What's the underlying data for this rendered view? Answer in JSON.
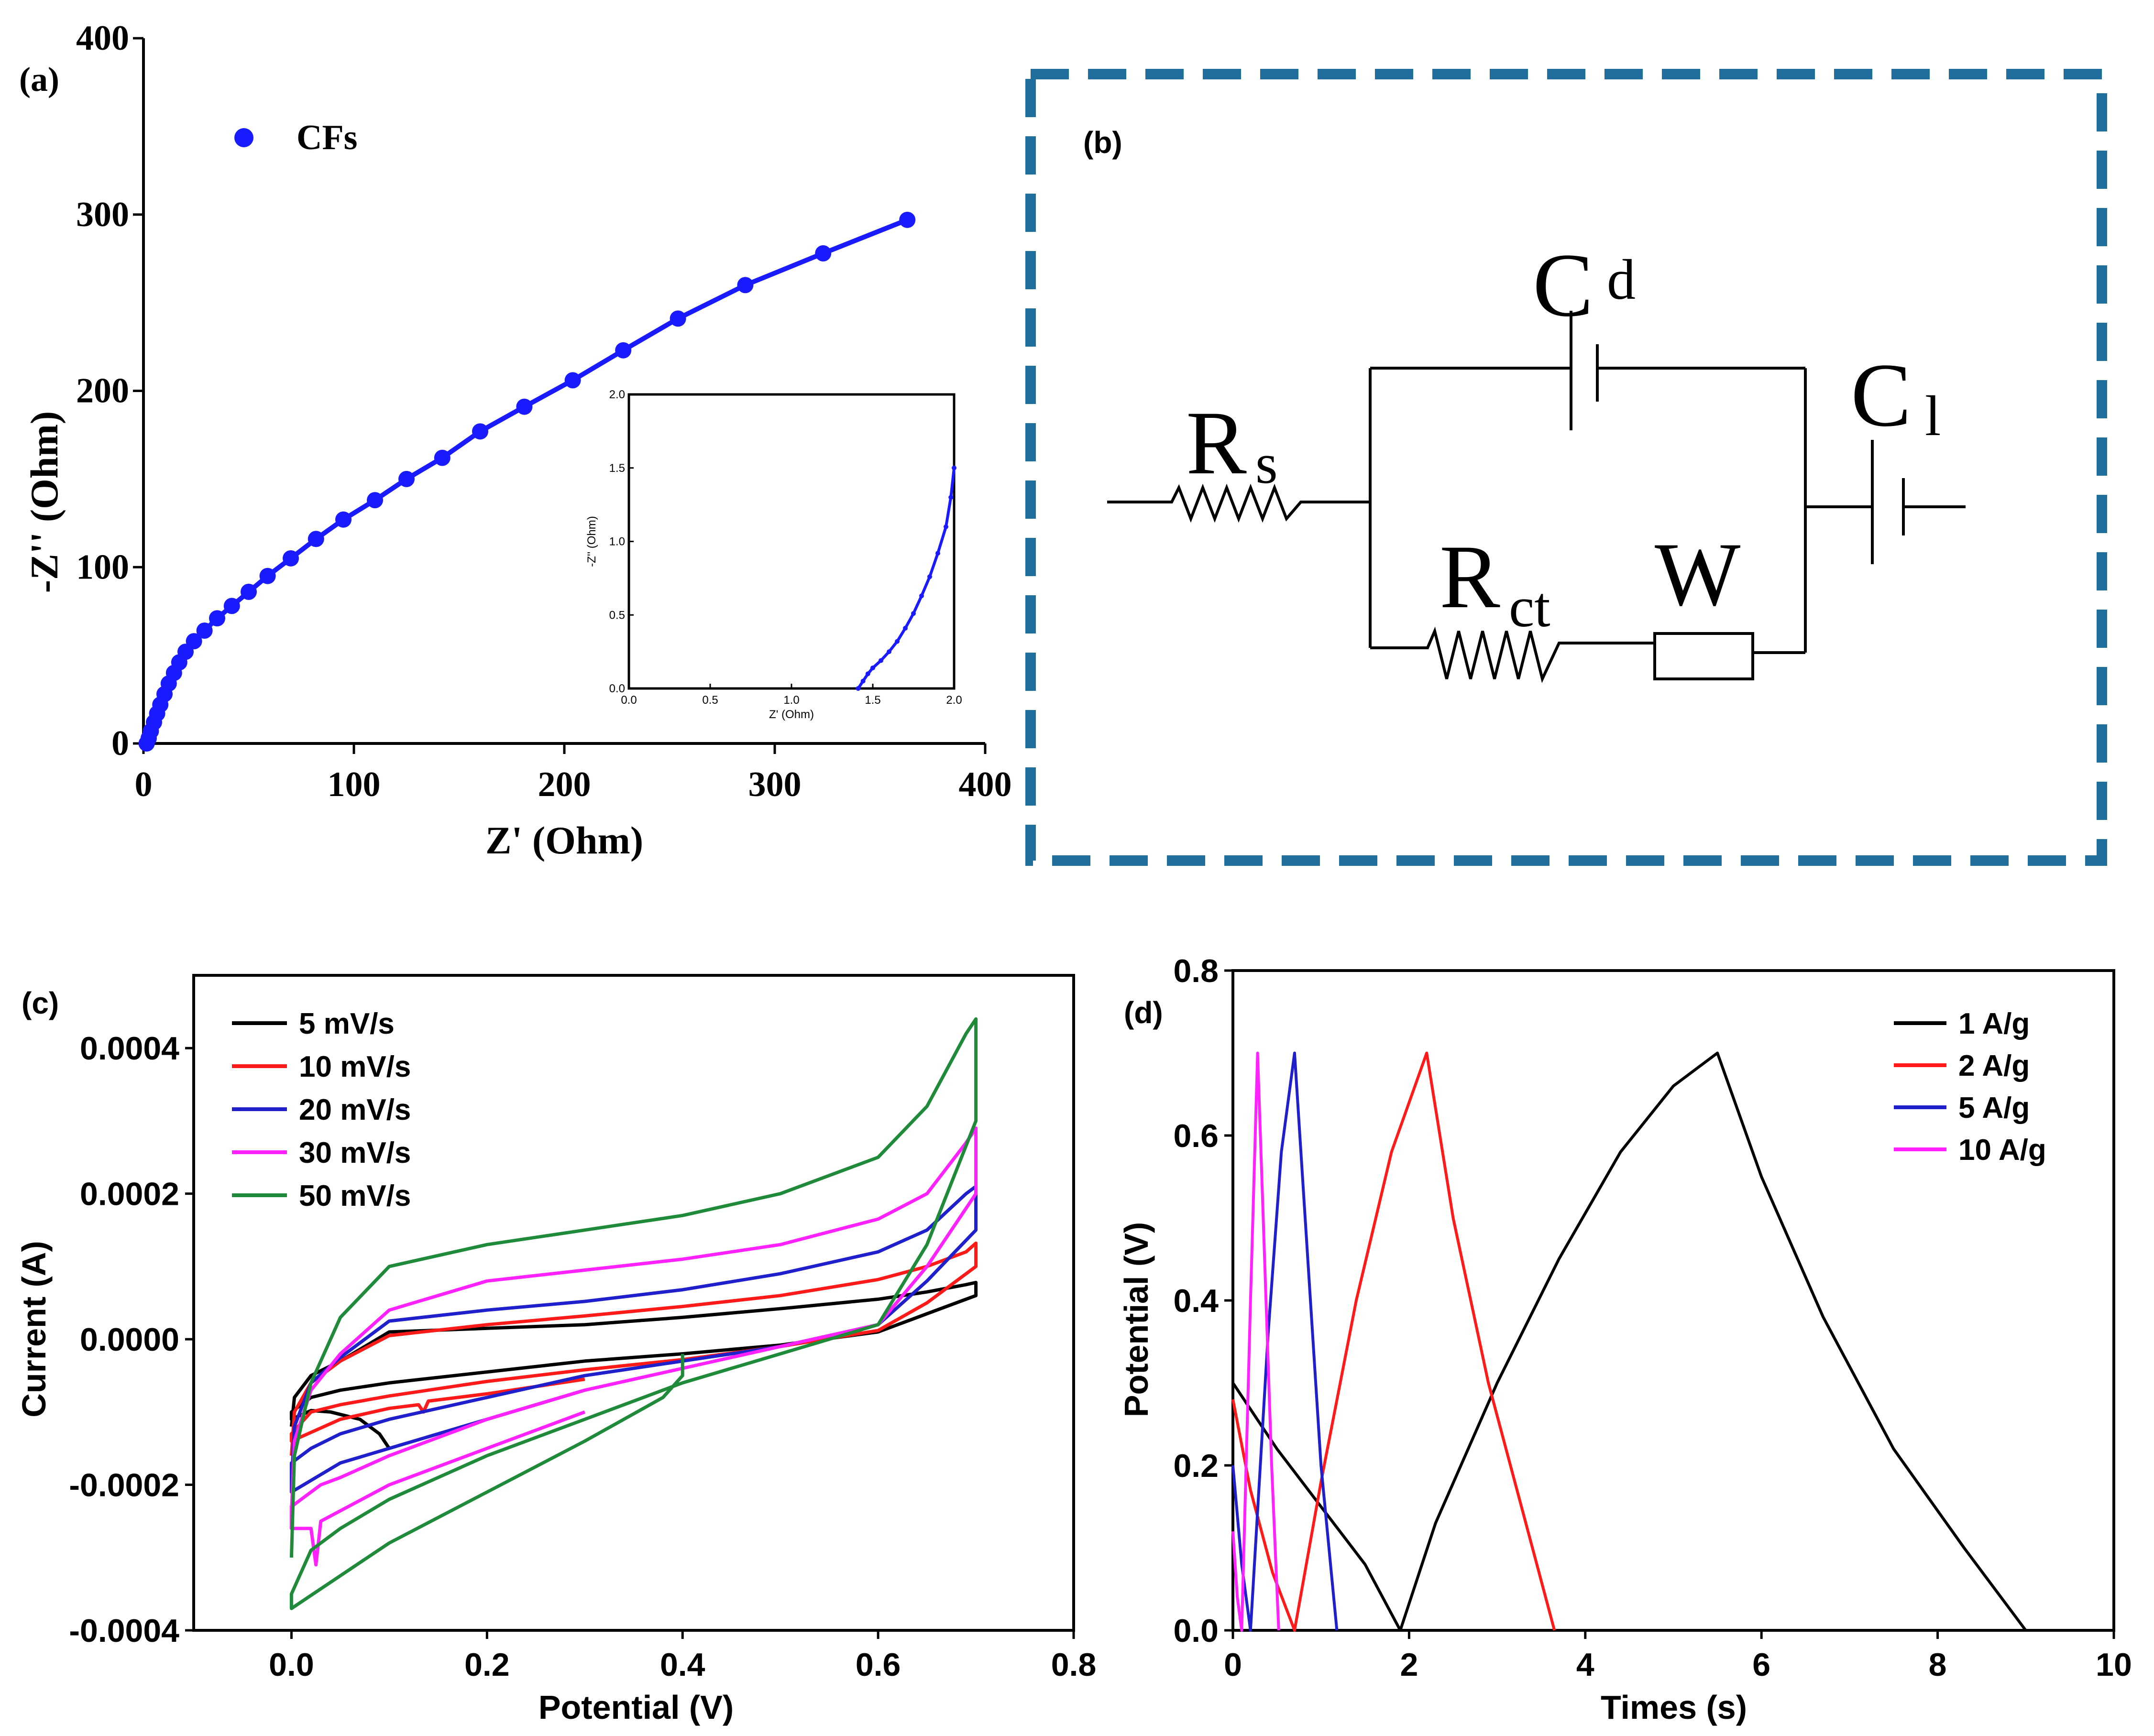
{
  "panels": {
    "a": {
      "label": "(a)"
    },
    "b": {
      "label": "(b)"
    },
    "c": {
      "label": "(c)"
    },
    "d": {
      "label": "(d)"
    }
  },
  "colors": {
    "blue_marker": "#1a1aff",
    "box_border": "#1f6e9c",
    "black": "#000000",
    "red": "#ff1a1a",
    "blue": "#1f1fcc",
    "magenta": "#ff22ff",
    "green": "#1f8a3a"
  },
  "circuit": {
    "rs_main": "R",
    "rs_sub": "s",
    "cd_main": "C",
    "cd_sub": "d",
    "cl_main": "C",
    "cl_sub": "l",
    "rct_main": "R",
    "rct_sub": "ct",
    "w_label": "W"
  },
  "chart_data": [
    {
      "id": "a",
      "type": "scatter",
      "title": "",
      "xlabel": "Z' (Ohm)",
      "ylabel": "-Z'' (Ohm)",
      "xlim": [
        0,
        400
      ],
      "ylim": [
        0,
        400
      ],
      "xticks": [
        "0",
        "100",
        "200",
        "300",
        "400"
      ],
      "yticks": [
        "0",
        "100",
        "200",
        "300",
        "400"
      ],
      "legend": [
        "CFs"
      ],
      "series": [
        {
          "name": "CFs",
          "color": "#1a1aff",
          "x": [
            1.5,
            2.5,
            3.5,
            5,
            6.5,
            8,
            10,
            12,
            14.5,
            17,
            20,
            24,
            29,
            35,
            42,
            50,
            59,
            70,
            82,
            95,
            110,
            125,
            142,
            160,
            181,
            204,
            228,
            254,
            286,
            323,
            363
          ],
          "y": [
            0,
            3,
            7,
            12,
            17,
            22,
            28,
            34,
            40,
            46,
            52,
            58,
            64,
            71,
            78,
            86,
            95,
            105,
            116,
            127,
            138,
            150,
            162,
            177,
            191,
            206,
            223,
            241,
            260,
            278,
            297
          ]
        }
      ],
      "inset": {
        "xlabel": "Z' (Ohm)",
        "ylabel": "-Z'' (Ohm)",
        "xlim": [
          0,
          2.0
        ],
        "ylim": [
          0,
          2.0
        ],
        "xticks": [
          "0.0",
          "0.5",
          "1.0",
          "1.5",
          "2.0"
        ],
        "yticks": [
          "0.0",
          "0.5",
          "1.0",
          "1.5",
          "2.0"
        ],
        "x": [
          1.41,
          1.44,
          1.47,
          1.5,
          1.55,
          1.6,
          1.65,
          1.7,
          1.75,
          1.8,
          1.85,
          1.9,
          1.95,
          1.98,
          2.0
        ],
        "y": [
          0.0,
          0.05,
          0.1,
          0.14,
          0.19,
          0.25,
          0.32,
          0.41,
          0.51,
          0.63,
          0.76,
          0.92,
          1.1,
          1.3,
          1.5
        ]
      }
    },
    {
      "id": "c",
      "type": "line",
      "title": "",
      "xlabel": "Potential (V)",
      "ylabel": "Current (A)",
      "xlim": [
        -0.1,
        0.8
      ],
      "ylim": [
        -0.0004,
        0.0005
      ],
      "xticks": [
        "0.0",
        "0.2",
        "0.4",
        "0.6",
        "0.8"
      ],
      "yticks": [
        "-0.0004",
        "-0.0002",
        "0.0000",
        "0.0002",
        "0.0004"
      ],
      "legend": [
        "5 mV/s",
        "10 mV/s",
        "20 mV/s",
        "30 mV/s",
        "50 mV/s"
      ],
      "series": [
        {
          "name": "5 mV/s",
          "color": "#000000",
          "x": [
            0.0,
            0.003,
            0.02,
            0.05,
            0.1,
            0.2,
            0.3,
            0.4,
            0.5,
            0.6,
            0.65,
            0.69,
            0.7,
            0.7,
            0.65,
            0.6,
            0.5,
            0.4,
            0.3,
            0.2,
            0.1,
            0.05,
            0.02,
            0.0,
            0.0,
            0.02,
            0.04,
            0.07,
            0.09,
            0.1
          ],
          "y": [
            -0.00012,
            -8e-05,
            -5e-05,
            -3e-05,
            1e-05,
            1.5e-05,
            2e-05,
            3e-05,
            4.2e-05,
            5.5e-05,
            6.5e-05,
            7.5e-05,
            7.8e-05,
            6e-05,
            3.5e-05,
            1e-05,
            -8e-06,
            -2e-05,
            -3e-05,
            -4.5e-05,
            -6e-05,
            -7e-05,
            -8e-05,
            -0.0001,
            -0.00011,
            -9.8e-05,
            -0.0001,
            -0.00011,
            -0.00013,
            -0.00015
          ]
        },
        {
          "name": "10 mV/s",
          "color": "#ff1a1a",
          "x": [
            0.0,
            0.003,
            0.02,
            0.05,
            0.1,
            0.2,
            0.3,
            0.4,
            0.5,
            0.6,
            0.65,
            0.69,
            0.7,
            0.7,
            0.65,
            0.6,
            0.5,
            0.4,
            0.3,
            0.2,
            0.1,
            0.05,
            0.02,
            0.0,
            0.0,
            0.05,
            0.1,
            0.13,
            0.135,
            0.14,
            0.2,
            0.3
          ],
          "y": [
            -0.00016,
            -0.0001,
            -6e-05,
            -3e-05,
            5e-06,
            2e-05,
            3.2e-05,
            4.5e-05,
            6e-05,
            8.2e-05,
            0.0001,
            0.00012,
            0.000132,
            0.0001,
            5e-05,
            1.2e-05,
            -1e-05,
            -2.8e-05,
            -4.2e-05,
            -5.8e-05,
            -7.8e-05,
            -9e-05,
            -0.0001,
            -0.00013,
            -0.00014,
            -0.00011,
            -9.5e-05,
            -9e-05,
            -0.0001,
            -8.5e-05,
            -7.5e-05,
            -5.5e-05
          ]
        },
        {
          "name": "20 mV/s",
          "color": "#1f1fcc",
          "x": [
            0.0,
            0.003,
            0.02,
            0.05,
            0.1,
            0.2,
            0.3,
            0.4,
            0.5,
            0.6,
            0.65,
            0.69,
            0.7,
            0.7,
            0.65,
            0.6,
            0.5,
            0.4,
            0.3,
            0.2,
            0.1,
            0.05,
            0.02,
            0.0,
            0.0,
            0.05,
            0.1,
            0.2,
            0.3
          ],
          "y": [
            -0.0002,
            -0.00012,
            -6e-05,
            -2.5e-05,
            2.5e-05,
            4e-05,
            5.2e-05,
            6.8e-05,
            9e-05,
            0.00012,
            0.00015,
            0.0002,
            0.00021,
            0.00015,
            8e-05,
            2e-05,
            -1e-05,
            -3e-05,
            -5e-05,
            -8e-05,
            -0.00011,
            -0.00013,
            -0.00015,
            -0.00017,
            -0.00021,
            -0.00017,
            -0.00015,
            -0.00011,
            -7e-05
          ]
        },
        {
          "name": "30 mV/s",
          "color": "#ff22ff",
          "x": [
            0.0,
            0.003,
            0.02,
            0.05,
            0.1,
            0.2,
            0.3,
            0.4,
            0.5,
            0.6,
            0.65,
            0.69,
            0.7,
            0.7,
            0.65,
            0.6,
            0.5,
            0.4,
            0.3,
            0.2,
            0.1,
            0.05,
            0.03,
            0.02,
            0.0,
            0.0,
            0.02,
            0.025,
            0.03,
            0.1,
            0.2,
            0.3
          ],
          "y": [
            -0.00024,
            -0.00014,
            -7e-05,
            -2e-05,
            4e-05,
            8e-05,
            9.5e-05,
            0.00011,
            0.00013,
            0.000165,
            0.0002,
            0.00027,
            0.00029,
            0.0002,
            0.0001,
            2e-05,
            -1e-05,
            -4e-05,
            -7e-05,
            -0.00011,
            -0.00016,
            -0.00019,
            -0.0002,
            -0.00021,
            -0.00023,
            -0.00026,
            -0.00026,
            -0.00031,
            -0.00025,
            -0.0002,
            -0.00015,
            -0.0001
          ]
        },
        {
          "name": "50 mV/s",
          "color": "#1f8a3a",
          "x": [
            0.0,
            0.003,
            0.02,
            0.05,
            0.1,
            0.2,
            0.3,
            0.4,
            0.5,
            0.6,
            0.65,
            0.69,
            0.7,
            0.7,
            0.65,
            0.6,
            0.5,
            0.4,
            0.3,
            0.2,
            0.1,
            0.05,
            0.02,
            0.0,
            0.0,
            0.1,
            0.2,
            0.3,
            0.38,
            0.4,
            0.4
          ],
          "y": [
            -0.0003,
            -0.00016,
            -6e-05,
            3e-05,
            0.0001,
            0.00013,
            0.00015,
            0.00017,
            0.0002,
            0.00025,
            0.00032,
            0.00042,
            0.00044,
            0.0003,
            0.00013,
            2e-05,
            -2e-05,
            -6e-05,
            -0.00011,
            -0.00016,
            -0.00022,
            -0.00026,
            -0.00029,
            -0.00035,
            -0.00037,
            -0.00028,
            -0.00021,
            -0.00014,
            -8e-05,
            -5e-05,
            -2e-05
          ]
        }
      ]
    },
    {
      "id": "d",
      "type": "line",
      "title": "",
      "xlabel": "Times (s)",
      "ylabel": "Potential (V)",
      "xlim": [
        0,
        10
      ],
      "ylim": [
        0,
        0.8
      ],
      "xticks": [
        "0",
        "2",
        "4",
        "6",
        "8",
        "10"
      ],
      "yticks": [
        "0.0",
        "0.2",
        "0.4",
        "0.6",
        "0.8"
      ],
      "legend": [
        "1 A/g",
        "2 A/g",
        "5 A/g",
        "10 A/g"
      ],
      "series": [
        {
          "name": "1 A/g",
          "color": "#000000",
          "x": [
            0,
            0.5,
            1.0,
            1.5,
            1.9,
            2.3,
            3.0,
            3.7,
            4.4,
            5.0,
            5.5,
            6.0,
            6.7,
            7.5,
            8.3,
            9.0
          ],
          "y": [
            0.3,
            0.22,
            0.15,
            0.08,
            0.0,
            0.13,
            0.3,
            0.45,
            0.58,
            0.66,
            0.7,
            0.55,
            0.38,
            0.22,
            0.1,
            0.0
          ]
        },
        {
          "name": "2 A/g",
          "color": "#ff1a1a",
          "x": [
            0,
            0.2,
            0.45,
            0.7,
            1.0,
            1.4,
            1.8,
            2.2,
            2.5,
            2.9,
            3.3,
            3.65
          ],
          "y": [
            0.28,
            0.17,
            0.07,
            0.0,
            0.18,
            0.4,
            0.58,
            0.7,
            0.5,
            0.3,
            0.14,
            0.0
          ]
        },
        {
          "name": "5 A/g",
          "color": "#1f1fcc",
          "x": [
            0,
            0.1,
            0.2,
            0.4,
            0.55,
            0.7,
            0.85,
            1.0,
            1.18
          ],
          "y": [
            0.2,
            0.08,
            0.0,
            0.36,
            0.58,
            0.7,
            0.45,
            0.2,
            0.0
          ]
        },
        {
          "name": "10 A/g",
          "color": "#ff22ff",
          "x": [
            0,
            0.05,
            0.1,
            0.2,
            0.28,
            0.36,
            0.44,
            0.52
          ],
          "y": [
            0.12,
            0.04,
            0.0,
            0.4,
            0.7,
            0.45,
            0.2,
            0.0
          ]
        }
      ]
    }
  ]
}
